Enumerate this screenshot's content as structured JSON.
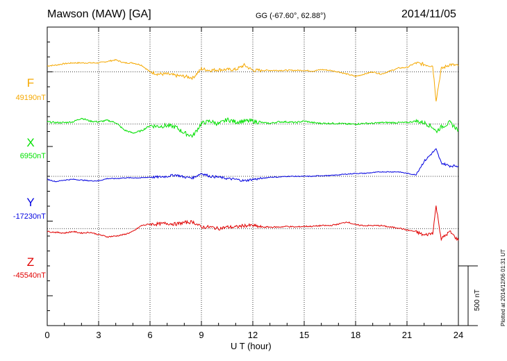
{
  "header": {
    "title": "Mawson (MAW)  [GA]",
    "coordinates": "GG (-67.60°,  62.88°)",
    "date": "2014/11/05"
  },
  "side": {
    "scale_label": "500 nT",
    "plotted_note": "Plotted at 2014/12/06 01:31  UT"
  },
  "colors": {
    "F": "#f5a800",
    "X": "#00e000",
    "Y": "#0000e0",
    "Z": "#e00000"
  },
  "chart_data": {
    "type": "line",
    "title": "Mawson (MAW)  [GA]",
    "xlabel": "U T (hour)",
    "ylabel": "",
    "x_ticks": [
      0,
      3,
      6,
      9,
      12,
      15,
      18,
      21,
      24
    ],
    "tick_labels": [
      "0",
      "3",
      "6",
      "9",
      "12",
      "15",
      "18",
      "21",
      "24"
    ],
    "xlim": [
      0,
      24
    ],
    "ylim": [
      -700,
      1300
    ],
    "scale_bar_nT": 500,
    "x": [
      0,
      0.5,
      1,
      1.5,
      2,
      2.5,
      3,
      3.5,
      4,
      4.5,
      5,
      5.5,
      6,
      6.5,
      7,
      7.5,
      8,
      8.5,
      9,
      9.5,
      10,
      10.5,
      11,
      11.5,
      12,
      12.5,
      13,
      13.5,
      14,
      14.5,
      15,
      15.5,
      16,
      16.5,
      17,
      17.5,
      18,
      18.5,
      19,
      19.5,
      20,
      20.5,
      21,
      21.5,
      22,
      22.5,
      22.7,
      23,
      23.5,
      24
    ],
    "series": [
      {
        "name": "F",
        "baseline_label": "49190nT",
        "offset_nT": 1000,
        "values": [
          40,
          45,
          55,
          60,
          60,
          60,
          60,
          70,
          80,
          60,
          60,
          45,
          0,
          -15,
          -15,
          -25,
          -30,
          -40,
          20,
          10,
          15,
          15,
          15,
          45,
          10,
          10,
          10,
          10,
          10,
          10,
          10,
          5,
          15,
          10,
          0,
          -15,
          -30,
          -15,
          0,
          -15,
          5,
          25,
          30,
          60,
          50,
          40,
          -190,
          20,
          50,
          40
        ]
      },
      {
        "name": "X",
        "baseline_label": "6950nT",
        "offset_nT": 650,
        "values": [
          15,
          10,
          10,
          15,
          40,
          20,
          15,
          25,
          10,
          -40,
          -60,
          -45,
          -10,
          -15,
          -10,
          -20,
          -60,
          -80,
          5,
          20,
          0,
          30,
          15,
          20,
          20,
          10,
          5,
          15,
          15,
          10,
          20,
          10,
          5,
          5,
          5,
          0,
          0,
          5,
          5,
          10,
          10,
          10,
          10,
          20,
          10,
          -20,
          -50,
          -20,
          10,
          -40
        ]
      },
      {
        "name": "Y",
        "baseline_label": "-17230nT",
        "offset_nT": 300,
        "values": [
          -20,
          -35,
          -25,
          -20,
          -25,
          -30,
          -30,
          -15,
          -15,
          -10,
          -10,
          -10,
          -5,
          -5,
          0,
          10,
          -5,
          -10,
          20,
          0,
          -5,
          -15,
          -20,
          -30,
          -20,
          -15,
          -5,
          -5,
          0,
          0,
          0,
          0,
          5,
          5,
          10,
          15,
          20,
          20,
          25,
          30,
          30,
          30,
          20,
          10,
          100,
          160,
          180,
          90,
          70,
          70
        ]
      },
      {
        "name": "Z",
        "baseline_label": "-45540nT",
        "offset_nT": -50,
        "values": [
          -20,
          -25,
          -30,
          -20,
          -30,
          -25,
          -40,
          -55,
          -50,
          -40,
          -20,
          20,
          30,
          30,
          35,
          30,
          40,
          45,
          10,
          10,
          0,
          10,
          10,
          20,
          20,
          10,
          10,
          10,
          15,
          10,
          15,
          15,
          20,
          20,
          30,
          45,
          25,
          20,
          20,
          20,
          10,
          5,
          -10,
          -20,
          -45,
          -30,
          150,
          -70,
          -20,
          -80
        ]
      }
    ]
  }
}
